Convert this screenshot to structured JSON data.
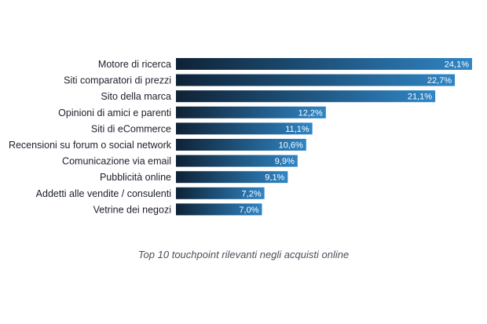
{
  "chart_data": {
    "type": "bar",
    "orientation": "horizontal",
    "title": "",
    "caption": "Top 10 touchpoint rilevanti negli acquisti online",
    "categories": [
      "Motore di ricerca",
      "Siti comparatori di prezzi",
      "Sito della marca",
      "Opinioni di amici e parenti",
      "Siti di eCommerce",
      "Recensioni su forum o social network",
      "Comunicazione via email",
      "Pubblicità online",
      "Addetti alle vendite / consulenti",
      "Vetrine dei negozi"
    ],
    "values": [
      24.1,
      22.7,
      21.1,
      12.2,
      11.1,
      10.6,
      9.9,
      9.1,
      7.2,
      7.0
    ],
    "value_labels": [
      "24,1%",
      "22,7%",
      "21,1%",
      "12,2%",
      "11,1%",
      "10,6%",
      "9,9%",
      "9,1%",
      "7,2%",
      "7,0%"
    ],
    "unit": "%",
    "xlim": [
      0,
      24.1
    ],
    "grid": false,
    "legend": "none",
    "colors": {
      "bar_start": "#0f2236",
      "bar_end": "#2f86c6",
      "label_text": "#1b1f2a",
      "value_text": "#ffffff"
    }
  }
}
